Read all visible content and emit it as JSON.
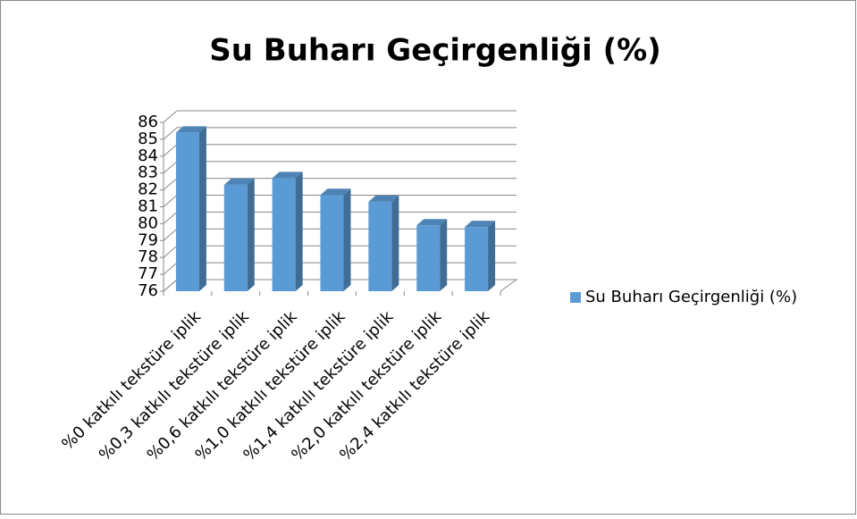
{
  "chart_data": {
    "type": "bar",
    "title": "Su Buharı Geçirgenliği (%)",
    "categories": [
      "%0 katkılı tekstüre iplik",
      "%0,3 katkılı tekstüre iplik",
      "%0,6 katkılı tekstüre iplik",
      "%1,0 katkılı tekstüre iplik",
      "%1,4 katkılı tekstüre iplik",
      "%2,0 katkılı tekstüre iplik",
      "%2,4 katkılı tekstüre iplik"
    ],
    "series": [
      {
        "name": "Su Buharı Geçirgenliği (%)",
        "color": "#5b9bd5",
        "values": [
          85.4,
          82.3,
          82.7,
          81.7,
          81.3,
          79.9,
          79.8
        ]
      }
    ],
    "ylim": [
      76,
      86
    ],
    "yticks": [
      76,
      77,
      78,
      79,
      80,
      81,
      82,
      83,
      84,
      85,
      86
    ],
    "grid": true,
    "legend": "right"
  }
}
